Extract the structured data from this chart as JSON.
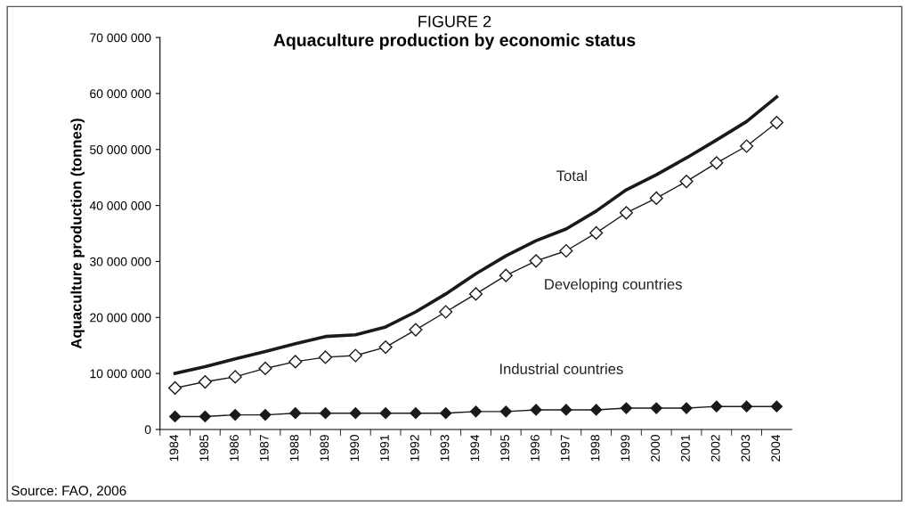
{
  "chart_data": {
    "type": "line",
    "title": "Aquaculture production by economic status",
    "subtitle": "FIGURE 2",
    "ylabel": "Aquaculture production (tonnes)",
    "categories": [
      "1984",
      "1985",
      "1986",
      "1987",
      "1988",
      "1989",
      "1990",
      "1991",
      "1992",
      "1993",
      "1994",
      "1995",
      "1996",
      "1997",
      "1998",
      "1999",
      "2000",
      "2001",
      "2002",
      "2003",
      "2004"
    ],
    "series": [
      {
        "name": "Total",
        "color": "#1a1a1a",
        "marker": "none",
        "values": [
          10000000,
          11200000,
          12600000,
          13900000,
          15300000,
          16600000,
          16900000,
          18300000,
          21000000,
          24200000,
          27800000,
          31000000,
          33700000,
          35800000,
          39000000,
          42800000,
          45500000,
          48500000,
          51700000,
          55000000,
          59400000
        ]
      },
      {
        "name": "Developing countries",
        "color": "#1a1a1a",
        "marker": "diamond",
        "values": [
          7400000,
          8500000,
          9400000,
          10900000,
          12100000,
          12900000,
          13200000,
          14700000,
          17800000,
          21000000,
          24200000,
          27500000,
          30100000,
          31900000,
          35100000,
          38700000,
          41300000,
          44300000,
          47600000,
          50600000,
          54800000
        ]
      },
      {
        "name": "Industrial countries",
        "color": "#1a1a1a",
        "marker": "diamond",
        "values": [
          2300000,
          2300000,
          2600000,
          2600000,
          2900000,
          2900000,
          2900000,
          2900000,
          2900000,
          2900000,
          3200000,
          3200000,
          3500000,
          3500000,
          3500000,
          3800000,
          3800000,
          3800000,
          4100000,
          4100000,
          4100000
        ]
      }
    ],
    "ylim": [
      0,
      70000000
    ],
    "yticks": [
      {
        "value": 0,
        "label": "0"
      },
      {
        "value": 10000000,
        "label": "10 000 000"
      },
      {
        "value": 20000000,
        "label": "20 000 000"
      },
      {
        "value": 30000000,
        "label": "30 000 000"
      },
      {
        "value": 40000000,
        "label": "40 000 000"
      },
      {
        "value": 50000000,
        "label": "50 000 000"
      },
      {
        "value": 60000000,
        "label": "60 000 000"
      },
      {
        "value": 70000000,
        "label": "70 000 000"
      }
    ],
    "grid": false,
    "legend": false,
    "annotations": [
      "Source: FAO, 2006"
    ]
  }
}
